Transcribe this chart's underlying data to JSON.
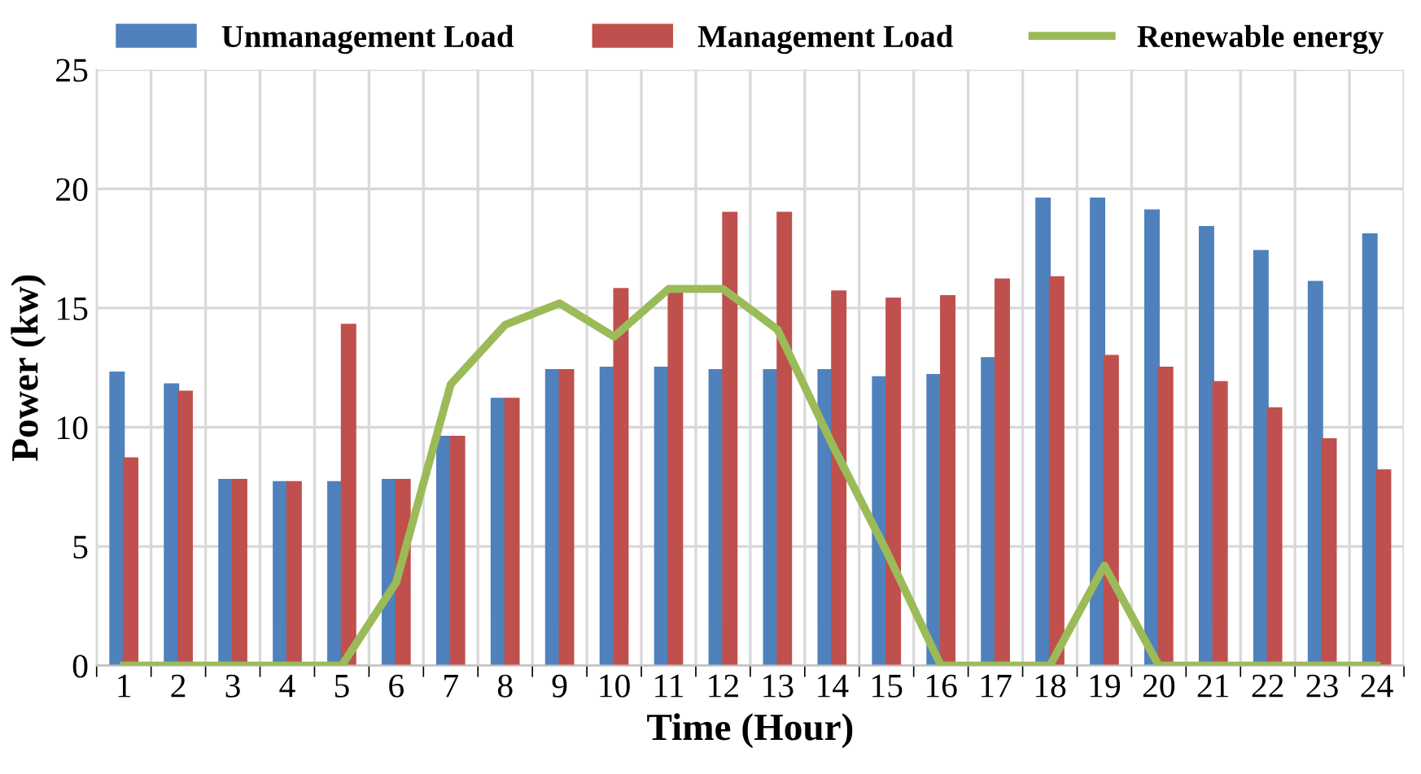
{
  "chart_data": {
    "type": "bar",
    "xlabel": "Time (Hour)",
    "ylabel": "Power (kw)",
    "categories": [
      "1",
      "2",
      "3",
      "4",
      "5",
      "6",
      "7",
      "8",
      "9",
      "10",
      "11",
      "12",
      "13",
      "14",
      "15",
      "16",
      "17",
      "18",
      "19",
      "20",
      "21",
      "22",
      "23",
      "24"
    ],
    "series": [
      {
        "name": "Unmanagement Load",
        "color": "#4f81bd",
        "values": [
          12.3,
          11.8,
          7.8,
          7.7,
          7.7,
          7.8,
          9.6,
          11.2,
          12.4,
          12.5,
          12.5,
          12.4,
          12.4,
          12.4,
          12.1,
          12.2,
          12.9,
          19.6,
          19.6,
          19.1,
          18.4,
          17.4,
          16.1,
          18.1
        ]
      },
      {
        "name": "Management Load",
        "color": "#c0504d",
        "values": [
          8.7,
          11.5,
          7.8,
          7.7,
          14.3,
          7.8,
          9.6,
          11.2,
          12.4,
          15.8,
          15.7,
          19.0,
          19.0,
          15.7,
          15.4,
          15.5,
          16.2,
          16.3,
          13.0,
          12.5,
          11.9,
          10.8,
          9.5,
          8.2
        ]
      },
      {
        "name": "Renewable energy",
        "type": "line",
        "color": "#9bbb59",
        "values": [
          0,
          0,
          0,
          0,
          0,
          3.5,
          11.8,
          14.3,
          15.2,
          13.8,
          15.8,
          15.8,
          14.1,
          9.3,
          4.8,
          0,
          0,
          0,
          4.2,
          0,
          0,
          0,
          0,
          0
        ]
      }
    ],
    "ylim": [
      0,
      25
    ],
    "yticks": [
      0,
      5,
      10,
      15,
      20,
      25
    ],
    "grid": true,
    "legend": "top",
    "marker": "none",
    "line_style": "solid"
  }
}
